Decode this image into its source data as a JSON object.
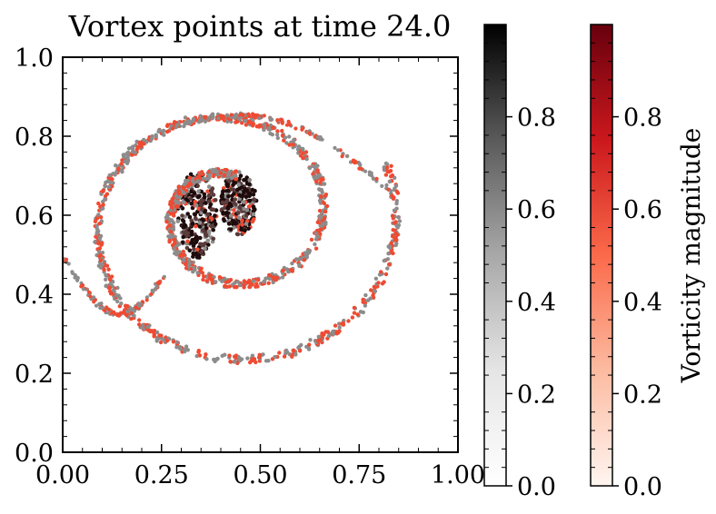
{
  "chart_data": {
    "type": "scatter",
    "title": "Vortex points at time 24.0",
    "xlabel": "",
    "ylabel": "",
    "xlim": [
      0.0,
      1.0
    ],
    "ylim": [
      0.0,
      1.0
    ],
    "x_ticks": [
      0.0,
      0.25,
      0.5,
      0.75,
      1.0
    ],
    "x_tick_labels": [
      "0.00",
      "0.25",
      "0.50",
      "0.75",
      "1.00"
    ],
    "y_ticks": [
      0.0,
      0.2,
      0.4,
      0.6,
      0.8,
      1.0
    ],
    "y_tick_labels": [
      "0.0",
      "0.2",
      "0.4",
      "0.6",
      "0.8",
      "1.0"
    ],
    "grid": false,
    "legend": "none",
    "series": [
      {
        "name": "Vortex points",
        "description": "particles along a spiral vortex; grey and red markers",
        "structure": {
          "core_center": [
            0.42,
            0.62
          ],
          "core_radius": [
            0.12,
            0.13
          ],
          "spiral_turns": 1.8
        }
      }
    ],
    "colorbars": [
      {
        "name": "greyscale",
        "colormap": "Greys",
        "range": [
          0.0,
          1.0
        ],
        "ticks": [
          0.0,
          0.2,
          0.4,
          0.6,
          0.8
        ],
        "tick_labels": [
          "0.0",
          "0.2",
          "0.4",
          "0.6",
          "0.8"
        ],
        "label": ""
      },
      {
        "name": "vorticity",
        "colormap": "Reds",
        "range": [
          0.0,
          1.0
        ],
        "ticks": [
          0.0,
          0.2,
          0.4,
          0.6,
          0.8
        ],
        "tick_labels": [
          "0.0",
          "0.2",
          "0.4",
          "0.6",
          "0.8"
        ],
        "label": "Vorticity magnitude"
      }
    ],
    "colors": {
      "grey_marker": "#8c8c8c",
      "red_marker": "#f04a32",
      "dark_marker": "#1e0b0b",
      "axis": "#000000"
    }
  }
}
